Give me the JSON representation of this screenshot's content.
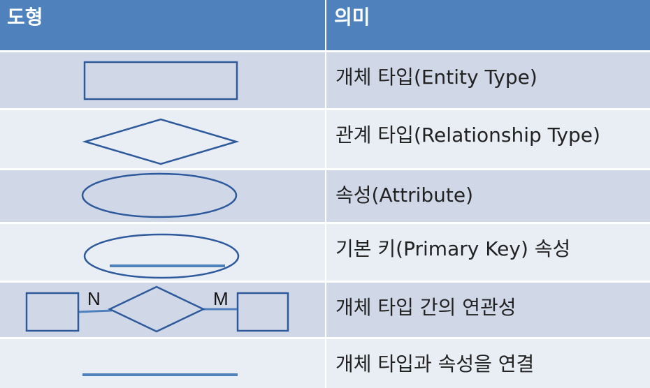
{
  "header": {
    "shape_label": "도형",
    "meaning_label": "의미"
  },
  "rows": [
    {
      "meaning": "개체 타입(Entity Type)",
      "shape_icon": "rectangle-icon"
    },
    {
      "meaning": "관계 타입(Relationship Type)",
      "shape_icon": "diamond-icon"
    },
    {
      "meaning": "속성(Attribute)",
      "shape_icon": "ellipse-icon"
    },
    {
      "meaning": "기본 키(Primary Key) 속성",
      "shape_icon": "underlined-ellipse-icon"
    },
    {
      "meaning": "개체 타입 간의 연관성",
      "shape_icon": "entity-relationship-icon",
      "left_label": "N",
      "right_label": "M"
    },
    {
      "meaning": "개체 타입과 속성을 연결",
      "shape_icon": "line-icon"
    }
  ],
  "colors": {
    "header_bg": "#4f81bd",
    "row_odd": "#d0d8e8",
    "row_even": "#e9edf4",
    "shape_stroke": "#2e5a9c"
  }
}
